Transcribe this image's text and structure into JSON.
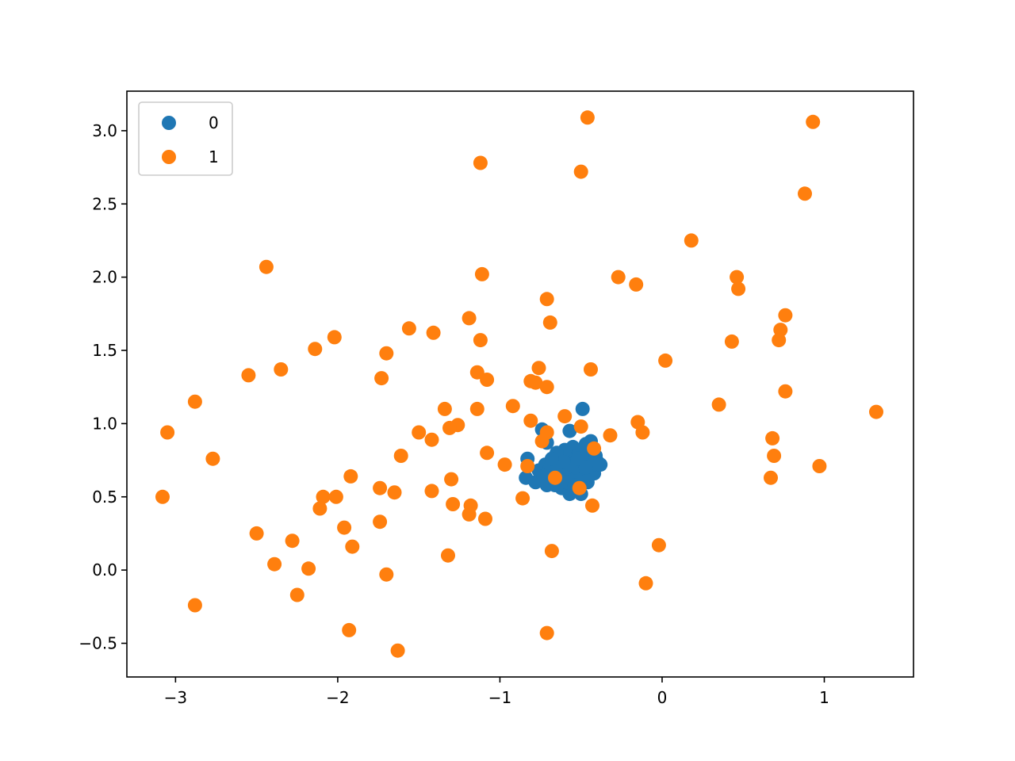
{
  "chart_data": {
    "type": "scatter",
    "title": "",
    "xlabel": "",
    "ylabel": "",
    "xlim": [
      -3.3,
      1.55
    ],
    "ylim": [
      -0.73,
      3.27
    ],
    "xticks": [
      -3,
      -2,
      -1,
      0,
      1
    ],
    "yticks": [
      -0.5,
      0.0,
      0.5,
      1.0,
      1.5,
      2.0,
      2.5,
      3.0
    ],
    "grid": false,
    "legend_position": "top-left",
    "series": [
      {
        "name": "0",
        "color": "#1f77b4",
        "points": [
          [
            -0.49,
            1.1
          ],
          [
            -0.74,
            0.96
          ],
          [
            -0.71,
            0.87
          ],
          [
            -0.57,
            0.95
          ],
          [
            -0.83,
            0.76
          ],
          [
            -0.84,
            0.63
          ],
          [
            -0.78,
            0.6
          ],
          [
            -0.76,
            0.68
          ],
          [
            -0.72,
            0.72
          ],
          [
            -0.7,
            0.65
          ],
          [
            -0.68,
            0.6
          ],
          [
            -0.66,
            0.74
          ],
          [
            -0.64,
            0.7
          ],
          [
            -0.62,
            0.56
          ],
          [
            -0.6,
            0.66
          ],
          [
            -0.58,
            0.78
          ],
          [
            -0.56,
            0.72
          ],
          [
            -0.54,
            0.62
          ],
          [
            -0.52,
            0.54
          ],
          [
            -0.5,
            0.68
          ],
          [
            -0.48,
            0.74
          ],
          [
            -0.46,
            0.6
          ],
          [
            -0.44,
            0.8
          ],
          [
            -0.42,
            0.66
          ],
          [
            -0.4,
            0.74
          ],
          [
            -0.47,
            0.86
          ],
          [
            -0.44,
            0.88
          ],
          [
            -0.41,
            0.78
          ],
          [
            -0.38,
            0.72
          ],
          [
            -0.55,
            0.84
          ],
          [
            -0.6,
            0.82
          ],
          [
            -0.63,
            0.62
          ],
          [
            -0.66,
            0.58
          ],
          [
            -0.69,
            0.7
          ],
          [
            -0.73,
            0.64
          ],
          [
            -0.57,
            0.52
          ],
          [
            -0.53,
            0.7
          ],
          [
            -0.51,
            0.8
          ],
          [
            -0.49,
            0.62
          ],
          [
            -0.45,
            0.66
          ],
          [
            -0.61,
            0.74
          ],
          [
            -0.59,
            0.6
          ],
          [
            -0.65,
            0.8
          ],
          [
            -0.68,
            0.76
          ],
          [
            -0.71,
            0.58
          ],
          [
            -0.54,
            0.58
          ],
          [
            -0.5,
            0.52
          ],
          [
            -0.43,
            0.72
          ],
          [
            -0.47,
            0.7
          ],
          [
            -0.52,
            0.76
          ]
        ]
      },
      {
        "name": "1",
        "color": "#ff7f0e",
        "points": [
          [
            -0.46,
            3.09
          ],
          [
            0.93,
            3.06
          ],
          [
            -1.12,
            2.78
          ],
          [
            -0.5,
            2.72
          ],
          [
            0.88,
            2.57
          ],
          [
            0.18,
            2.25
          ],
          [
            -2.44,
            2.07
          ],
          [
            -1.11,
            2.02
          ],
          [
            -0.27,
            2.0
          ],
          [
            0.46,
            2.0
          ],
          [
            -0.16,
            1.95
          ],
          [
            0.47,
            1.92
          ],
          [
            -0.71,
            1.85
          ],
          [
            0.76,
            1.74
          ],
          [
            -1.19,
            1.72
          ],
          [
            -0.69,
            1.69
          ],
          [
            -1.56,
            1.65
          ],
          [
            0.73,
            1.64
          ],
          [
            -1.41,
            1.62
          ],
          [
            -2.02,
            1.59
          ],
          [
            -1.12,
            1.57
          ],
          [
            0.72,
            1.57
          ],
          [
            0.43,
            1.56
          ],
          [
            -2.14,
            1.51
          ],
          [
            -1.7,
            1.48
          ],
          [
            0.02,
            1.43
          ],
          [
            -0.76,
            1.38
          ],
          [
            -2.35,
            1.37
          ],
          [
            -0.44,
            1.37
          ],
          [
            -1.14,
            1.35
          ],
          [
            -2.55,
            1.33
          ],
          [
            -1.73,
            1.31
          ],
          [
            -1.08,
            1.3
          ],
          [
            -0.81,
            1.29
          ],
          [
            -0.78,
            1.28
          ],
          [
            -0.71,
            1.25
          ],
          [
            0.76,
            1.22
          ],
          [
            -2.88,
            1.15
          ],
          [
            0.35,
            1.13
          ],
          [
            -0.92,
            1.12
          ],
          [
            -1.34,
            1.1
          ],
          [
            -1.14,
            1.1
          ],
          [
            1.32,
            1.08
          ],
          [
            -0.6,
            1.05
          ],
          [
            -0.81,
            1.02
          ],
          [
            -0.15,
            1.01
          ],
          [
            -1.26,
            0.99
          ],
          [
            -1.31,
            0.97
          ],
          [
            -0.5,
            0.98
          ],
          [
            -3.05,
            0.94
          ],
          [
            -1.5,
            0.94
          ],
          [
            -0.71,
            0.94
          ],
          [
            -0.12,
            0.94
          ],
          [
            -0.32,
            0.92
          ],
          [
            -1.42,
            0.89
          ],
          [
            0.68,
            0.9
          ],
          [
            -0.74,
            0.88
          ],
          [
            -0.42,
            0.83
          ],
          [
            -1.61,
            0.78
          ],
          [
            -1.08,
            0.8
          ],
          [
            -2.77,
            0.76
          ],
          [
            0.69,
            0.78
          ],
          [
            -0.97,
            0.72
          ],
          [
            -0.83,
            0.71
          ],
          [
            0.97,
            0.71
          ],
          [
            -1.92,
            0.64
          ],
          [
            -0.66,
            0.63
          ],
          [
            0.67,
            0.63
          ],
          [
            -1.3,
            0.62
          ],
          [
            -1.74,
            0.56
          ],
          [
            -0.51,
            0.56
          ],
          [
            -1.65,
            0.53
          ],
          [
            -1.42,
            0.54
          ],
          [
            -3.08,
            0.5
          ],
          [
            -2.09,
            0.5
          ],
          [
            -2.01,
            0.5
          ],
          [
            -0.86,
            0.49
          ],
          [
            -1.29,
            0.45
          ],
          [
            -1.18,
            0.44
          ],
          [
            -0.43,
            0.44
          ],
          [
            -2.11,
            0.42
          ],
          [
            -1.19,
            0.38
          ],
          [
            -1.09,
            0.35
          ],
          [
            -1.74,
            0.33
          ],
          [
            -1.96,
            0.29
          ],
          [
            -2.5,
            0.25
          ],
          [
            -2.28,
            0.2
          ],
          [
            -1.91,
            0.16
          ],
          [
            -0.02,
            0.17
          ],
          [
            -0.68,
            0.13
          ],
          [
            -1.32,
            0.1
          ],
          [
            -2.39,
            0.04
          ],
          [
            -2.18,
            0.01
          ],
          [
            -1.7,
            -0.03
          ],
          [
            -2.25,
            -0.17
          ],
          [
            -0.1,
            -0.09
          ],
          [
            -2.88,
            -0.24
          ],
          [
            -1.93,
            -0.41
          ],
          [
            -0.71,
            -0.43
          ],
          [
            -1.63,
            -0.55
          ]
        ]
      }
    ]
  }
}
